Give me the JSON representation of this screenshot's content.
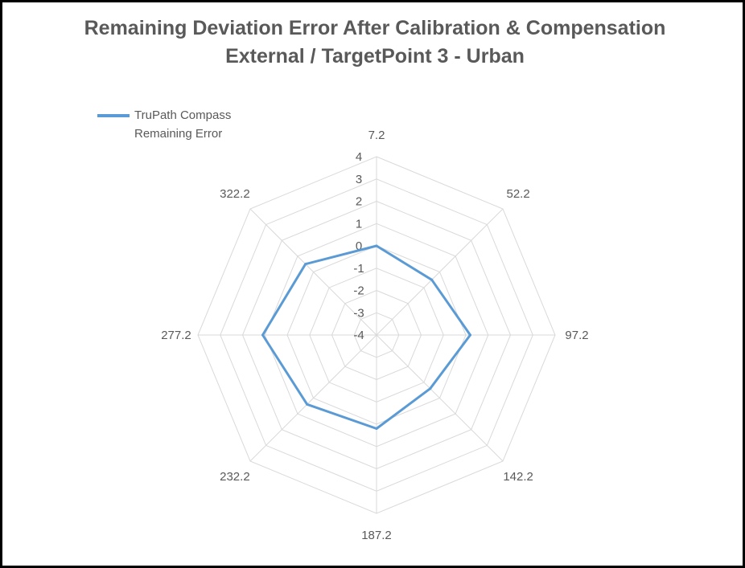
{
  "chart_data": {
    "type": "radar",
    "title": "Remaining Deviation Error After Calibration & Compensation",
    "subtitle": "External / TargetPoint 3 - Urban",
    "categories": [
      "7.2",
      "52.2",
      "97.2",
      "142.2",
      "187.2",
      "232.2",
      "277.2",
      "322.2"
    ],
    "series": [
      {
        "name": "TruPath Compass Remaining Error",
        "values": [
          0,
          -0.5,
          0.2,
          -0.6,
          0.2,
          0.4,
          1.1,
          0.5
        ],
        "color": "#5b9bd5"
      }
    ],
    "rlim": [
      -4,
      4
    ],
    "rticks": [
      4,
      3,
      2,
      1,
      0,
      -1,
      -2,
      -3,
      -4
    ],
    "grid": true,
    "legend": "top-left"
  }
}
